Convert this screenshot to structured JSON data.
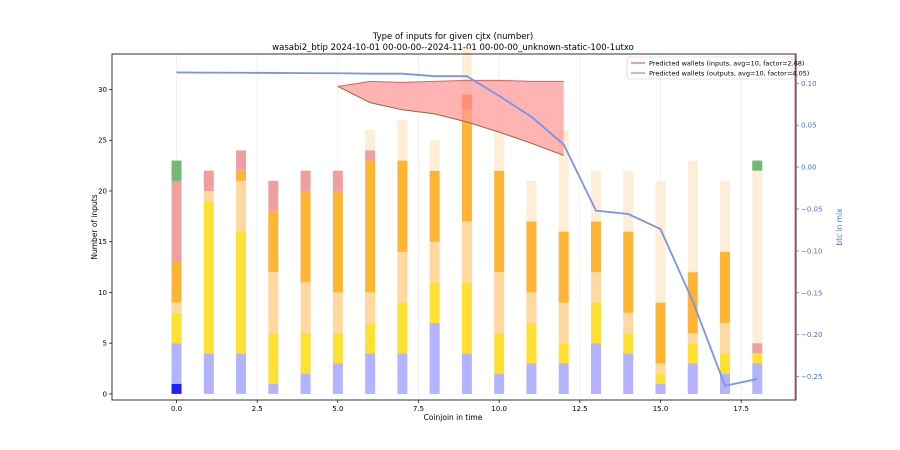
{
  "chart_data": {
    "type": "bar",
    "title": "Type of inputs for given cjtx (number)",
    "subtitle": "wasabi2_btip 2024-10-01 00-00-00--2024-11-01 00-00-00_unknown-static-100-1utxo",
    "xlabel": "Coinjoin in time",
    "ylabel": "Number of inputs",
    "y2label": "btc in mix",
    "xlim": [
      -2.0,
      19.2
    ],
    "ylim": [
      -0.6,
      33.5
    ],
    "y2lim": [
      -0.278,
      0.135
    ],
    "xticks": [
      "0.0",
      "2.5",
      "5.0",
      "7.5",
      "10.0",
      "12.5",
      "15.0",
      "17.5"
    ],
    "xtick_values": [
      0,
      2.5,
      5,
      7.5,
      10,
      12.5,
      15,
      17.5
    ],
    "yticks": [
      "0",
      "5",
      "10",
      "15",
      "20",
      "25",
      "30"
    ],
    "ytick_values": [
      0,
      5,
      10,
      15,
      20,
      25,
      30
    ],
    "y2ticks": [
      "0.10",
      "0.05",
      "0.00",
      "−0.05",
      "−0.10",
      "−0.15",
      "−0.20",
      "−0.25"
    ],
    "y2tick_values": [
      0.1,
      0.05,
      0.0,
      -0.05,
      -0.1,
      -0.15,
      -0.2,
      -0.25
    ],
    "categories": [
      0,
      1,
      2,
      3,
      4,
      5,
      6,
      7,
      8,
      9,
      10,
      11,
      12,
      13,
      14,
      15,
      16,
      17,
      18
    ],
    "stack_colors": [
      "#1f1fff",
      "#b3b3ff",
      "#ffe033",
      "#ffd9a0",
      "#ffb433",
      "#ff7300",
      "#eea0a0",
      "#ffeed7",
      "#73b873"
    ],
    "series": [
      {
        "name": "blue",
        "values": [
          1,
          0,
          0,
          0,
          0,
          0,
          0,
          0,
          0,
          0,
          0,
          0,
          0,
          0,
          0,
          0,
          0,
          0,
          0
        ]
      },
      {
        "name": "lavender",
        "values": [
          4,
          4,
          4,
          1,
          2,
          3,
          4,
          4,
          7,
          4,
          2,
          3,
          3,
          5,
          4,
          1,
          3,
          2,
          3
        ]
      },
      {
        "name": "yellow",
        "values": [
          3,
          15,
          12,
          5,
          4,
          3,
          3,
          5,
          4,
          7,
          4,
          4,
          2,
          4,
          2,
          1,
          2,
          2,
          1
        ]
      },
      {
        "name": "peach",
        "values": [
          1,
          1,
          5,
          6,
          5,
          4,
          3,
          5,
          4,
          6,
          6,
          3,
          4,
          3,
          2,
          1,
          1,
          3,
          0
        ]
      },
      {
        "name": "orange",
        "values": [
          4,
          0,
          1,
          6,
          9,
          10,
          13,
          9,
          7,
          11,
          10,
          7,
          7,
          5,
          8,
          6,
          6,
          7,
          0
        ]
      },
      {
        "name": "dark-orange",
        "values": [
          0,
          0,
          0,
          0,
          0,
          0,
          0,
          0,
          0,
          1.5,
          0,
          0,
          0,
          0,
          0,
          0,
          0,
          0,
          0
        ]
      },
      {
        "name": "salmon",
        "values": [
          8,
          2,
          2,
          3,
          2,
          2,
          1,
          0,
          0,
          0,
          0,
          0,
          0,
          0,
          0,
          0,
          0,
          0,
          1
        ]
      },
      {
        "name": "cream",
        "values": [
          0,
          0,
          0,
          0,
          0,
          0,
          2,
          4,
          3,
          4.5,
          4,
          4,
          10,
          5,
          6,
          12,
          11,
          7,
          17
        ]
      },
      {
        "name": "green",
        "values": [
          2,
          0,
          0,
          0,
          0,
          0,
          0,
          0,
          0,
          0,
          0,
          0,
          0,
          0,
          0,
          0,
          0,
          0,
          1
        ]
      }
    ],
    "btc_in_mix": {
      "x": [
        0,
        1,
        2,
        3,
        4,
        5,
        6,
        7,
        8,
        9,
        10,
        11,
        12,
        13,
        14,
        15,
        16,
        17,
        18
      ],
      "values": [
        0.113,
        0.1128,
        0.1126,
        0.1124,
        0.1122,
        0.112,
        0.1115,
        0.1115,
        0.1085,
        0.1085,
        0.085,
        0.06,
        0.027,
        -0.052,
        -0.056,
        -0.074,
        -0.16,
        -0.261,
        -0.253
      ],
      "color": "#7b93e8"
    },
    "predicted_inputs": {
      "x": [
        5,
        6,
        7,
        8,
        9,
        10,
        11,
        12
      ],
      "upper": [
        30.3,
        30.8,
        30.7,
        30.8,
        30.9,
        30.9,
        30.8,
        30.8
      ],
      "lower": [
        30.3,
        28.7,
        28.0,
        27.6,
        26.8,
        25.8,
        24.7,
        23.5
      ],
      "fill": "#ff9999",
      "edge_upper": "#e06060",
      "edge_lower": "#8a6a3a"
    },
    "legend": [
      {
        "label": "Predicted wallets (inputs, avg=10, factor=2.68)",
        "color": "#e8806a"
      },
      {
        "label": "Predicted wallets (outputs, avg=10, factor=4.05)",
        "color": "#77cc77"
      }
    ],
    "legend_position": "top-right"
  }
}
